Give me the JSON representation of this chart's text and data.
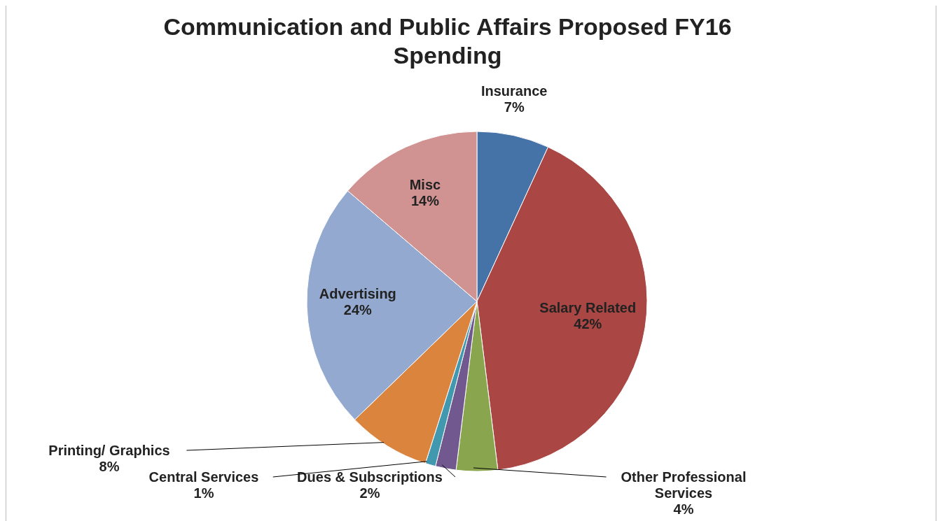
{
  "chart_data": {
    "type": "pie",
    "title": "Communication and Public Affairs Proposed FY16 Spending",
    "categories": [
      "Insurance",
      "Salary Related",
      "Other Professional Services",
      "Dues & Subscriptions",
      "Central Services",
      "Printing/ Graphics",
      "Advertising",
      "Misc"
    ],
    "values": [
      7,
      42,
      4,
      2,
      1,
      8,
      24,
      14
    ],
    "value_labels": [
      "7%",
      "42%",
      "4%",
      "2%",
      "1%",
      "8%",
      "24%",
      "14%"
    ],
    "colors": [
      "#4572a7",
      "#aa4643",
      "#89a54e",
      "#71588f",
      "#4198af",
      "#db843d",
      "#93a9cf",
      "#d19392"
    ],
    "legend": false
  }
}
